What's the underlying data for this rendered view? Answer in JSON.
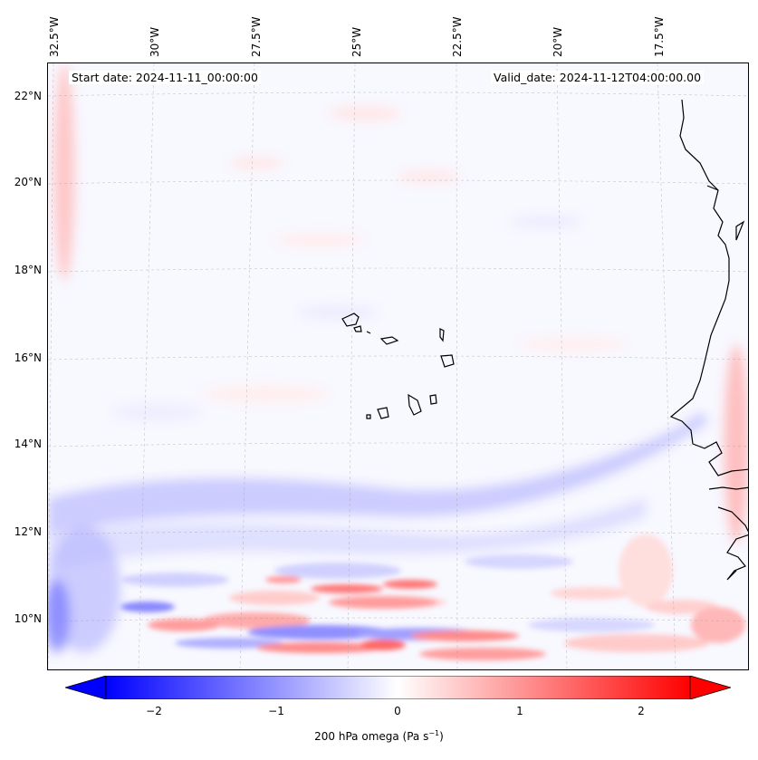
{
  "map": {
    "start_date_text": "Start date: 2024-11-11_00:00:00",
    "valid_date_text": "Valid_date: 2024-11-12T04:00:00.00",
    "longitude_labels": [
      "32.5°W",
      "30°W",
      "27.5°W",
      "25°W",
      "22.5°W",
      "20°W",
      "17.5°W"
    ],
    "latitude_labels": [
      "22°N",
      "20°N",
      "18°N",
      "16°N",
      "14°N",
      "12°N",
      "10°N"
    ],
    "variable": "200 hPa omega",
    "colors": {
      "negative": "#0000ff",
      "neutral": "#ffffff",
      "positive": "#ff0000",
      "coastline": "#000000"
    }
  },
  "colorbar": {
    "label_prefix": "200 hPa omega (Pa s",
    "label_exponent": "−1",
    "label_suffix": ")",
    "ticks": [
      "−2",
      "−1",
      "0",
      "1",
      "2"
    ],
    "range": [
      -2.75,
      2.75
    ]
  }
}
